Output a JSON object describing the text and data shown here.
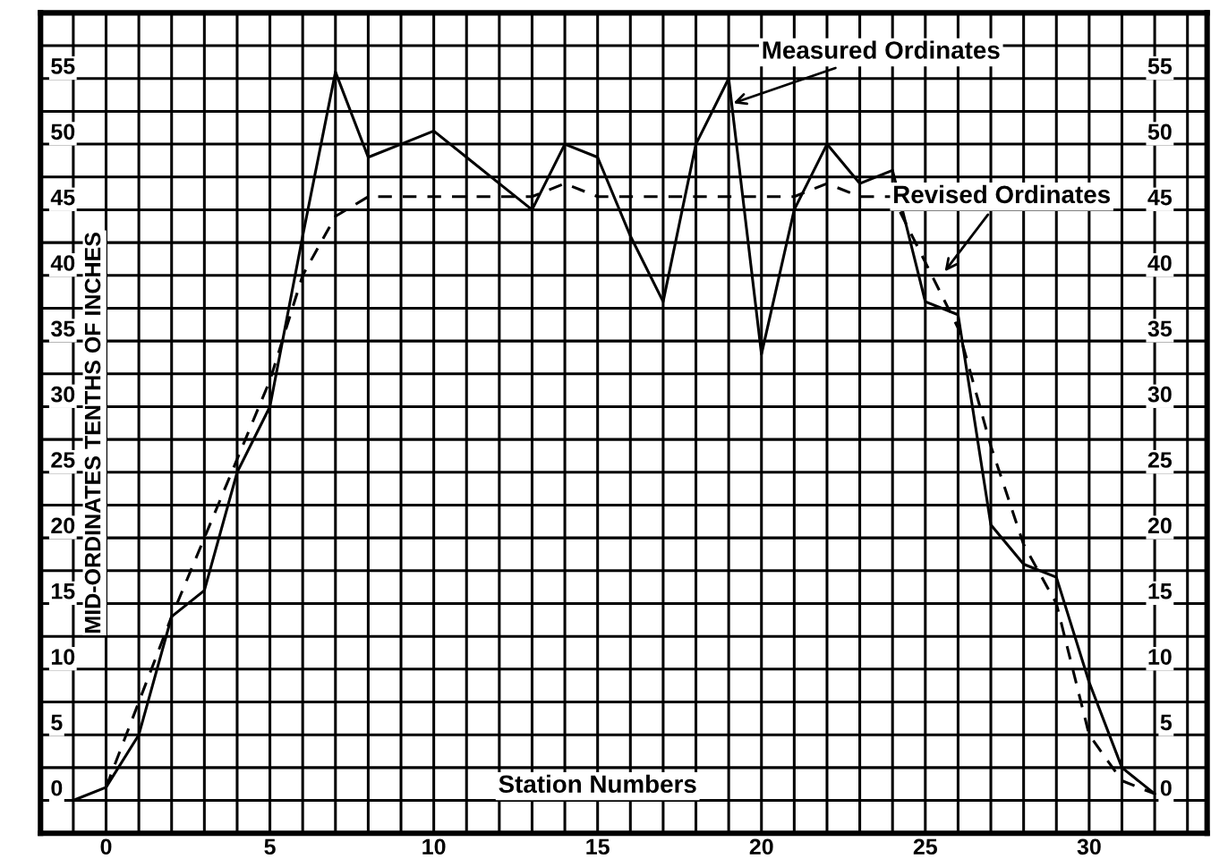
{
  "chart_data": {
    "type": "line",
    "xlabel": "Station Numbers",
    "ylabel": "MID-ORDINATES TENTHS OF INCHES",
    "xlim": [
      -2,
      33.6
    ],
    "ylim": [
      -2.5,
      60
    ],
    "xticks": [
      0,
      5,
      10,
      15,
      20,
      25,
      30
    ],
    "yticks": [
      0,
      5,
      10,
      15,
      20,
      25,
      30,
      35,
      40,
      45,
      50,
      55
    ],
    "y2lim": [
      -2.5,
      60
    ],
    "y2ticks": [
      0,
      5,
      10,
      15,
      20,
      25,
      30,
      35,
      40,
      45,
      50,
      55
    ],
    "grid": true,
    "marker": "none",
    "series": [
      {
        "color": "#000000",
        "line_style": "solid",
        "x": [
          -1,
          0,
          1,
          2,
          3,
          4,
          5,
          6,
          7,
          8,
          9,
          10,
          11,
          12,
          13,
          14,
          15,
          16,
          17,
          18,
          19,
          20,
          21,
          22,
          23,
          24,
          25,
          26,
          27,
          28,
          29,
          30,
          31,
          32
        ],
        "values": [
          0,
          1,
          5,
          14,
          16,
          25,
          30,
          43,
          55.5,
          49,
          50,
          51,
          49,
          47,
          45,
          50,
          49,
          43,
          38,
          50,
          55,
          34,
          45,
          50,
          47,
          48,
          38,
          37,
          21,
          18,
          17,
          9,
          2.5,
          0.5
        ]
      },
      {
        "color": "#000000",
        "line_style": "dashed",
        "x": [
          0,
          1,
          2,
          3,
          4,
          5,
          6,
          7,
          8,
          9,
          10,
          11,
          12,
          13,
          14,
          15,
          16,
          17,
          18,
          19,
          20,
          21,
          22,
          23,
          24,
          25,
          26,
          27,
          28,
          29,
          30,
          31,
          32
        ],
        "values": [
          1,
          7.5,
          14,
          20,
          26,
          32,
          40,
          44.5,
          46,
          46,
          46,
          46,
          46,
          46,
          47,
          46,
          46,
          46,
          46,
          46,
          46,
          46,
          47,
          46,
          46,
          41,
          36,
          27,
          19.5,
          15,
          5,
          1.5,
          0.5
        ]
      }
    ],
    "annotations": [
      {
        "text": "Measured Ordinates",
        "x": 19,
        "y": 53
      },
      {
        "text": "Revised Ordinates",
        "x": 25.5,
        "y": 40
      }
    ]
  }
}
